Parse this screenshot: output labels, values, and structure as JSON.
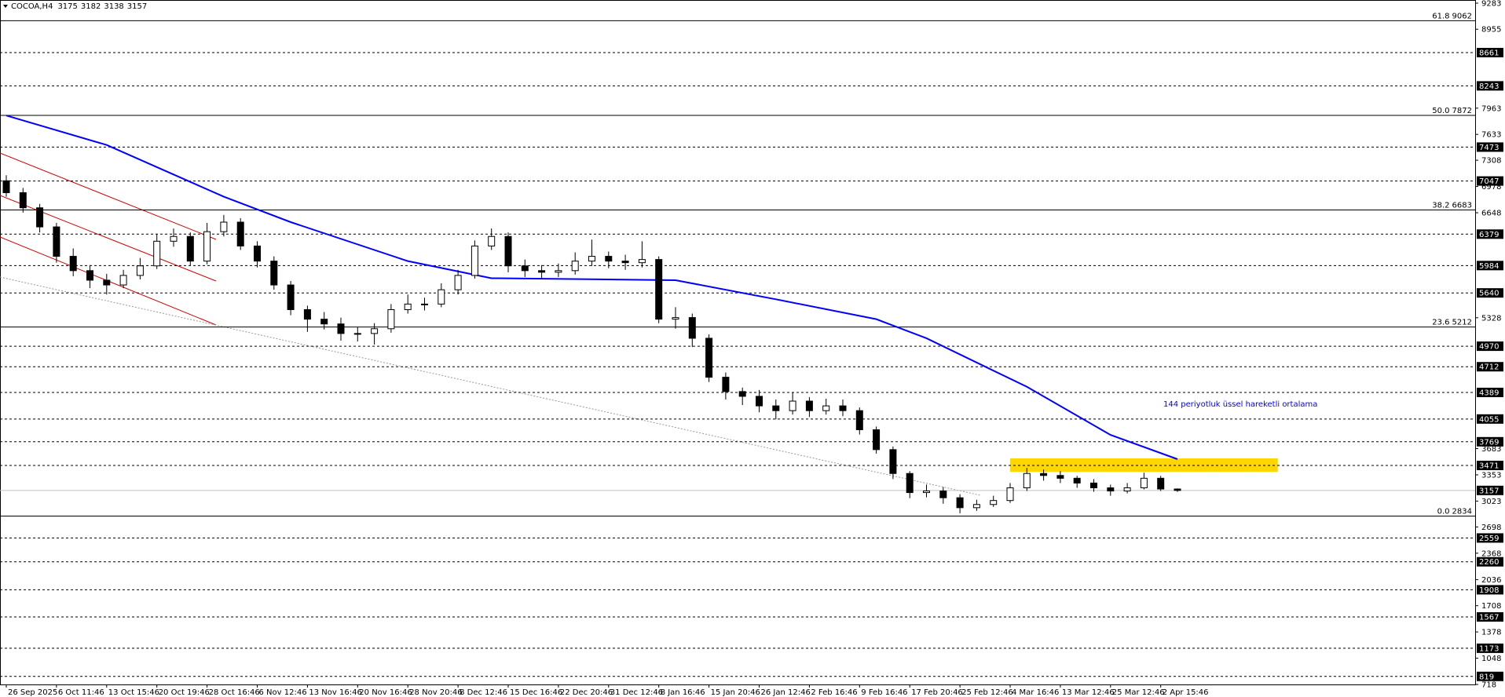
{
  "chart_data": {
    "type": "candlestick",
    "title": "COCOA,H4",
    "header_values": [
      3175,
      3182,
      3138,
      3157
    ],
    "categories": [
      "26 Sep 2025",
      null,
      null,
      "6 Oct 11:46",
      null,
      null,
      "13 Oct 15:46",
      null,
      null,
      "20 Oct 19:46",
      null,
      null,
      "28 Oct 16:46",
      null,
      null,
      "6 Nov 12:46",
      null,
      null,
      "13 Nov 16:46",
      null,
      null,
      "20 Nov 16:46",
      null,
      null,
      "28 Nov 20:46",
      null,
      null,
      "8 Dec 12:46",
      null,
      null,
      "15 Dec 16:46",
      null,
      null,
      "22 Dec 20:46",
      null,
      null,
      "31 Dec 12:46",
      null,
      null,
      "8 Jan 16:46",
      null,
      null,
      "15 Jan 20:46",
      null,
      null,
      "26 Jan 12:46",
      null,
      null,
      "2 Feb 16:46",
      null,
      null,
      "9 Feb 16:46",
      null,
      null,
      "17 Feb 20:46",
      null,
      null,
      "25 Feb 12:46",
      null,
      null,
      "4 Mar 16:46",
      null,
      null,
      "13 Mar 12:46",
      null,
      null,
      "25 Mar 12:46",
      null,
      null,
      "2 Apr 15:46",
      null
    ],
    "open": [
      7050,
      6900,
      6710,
      6470,
      6100,
      5920,
      5800,
      5740,
      5860,
      5980,
      6290,
      6350,
      6040,
      6410,
      6530,
      6230,
      6040,
      5740,
      5430,
      5310,
      5250,
      5130,
      5130,
      5190,
      5430,
      5500,
      5500,
      5680,
      5860,
      6230,
      6350,
      5980,
      5920,
      5900,
      5920,
      6040,
      6100,
      6040,
      6020,
      6060,
      5310,
      5330,
      5070,
      4580,
      4400,
      4340,
      4220,
      4160,
      4280,
      4160,
      4220,
      4160,
      3920,
      3670,
      3370,
      3130,
      3150,
      3065,
      2940,
      2980,
      3030,
      3190,
      3370,
      3345,
      3310,
      3250,
      3190,
      3150,
      3190,
      3310,
      3175
    ],
    "high": [
      7120,
      6960,
      6760,
      6520,
      6200,
      5990,
      5880,
      5930,
      6080,
      6380,
      6450,
      6400,
      6520,
      6620,
      6580,
      6290,
      6100,
      5790,
      5480,
      5400,
      5330,
      5210,
      5260,
      5500,
      5620,
      5580,
      5760,
      5930,
      6300,
      6450,
      6400,
      6060,
      5990,
      6010,
      6150,
      6310,
      6160,
      6120,
      6290,
      6100,
      5460,
      5380,
      5120,
      4640,
      4450,
      4420,
      4300,
      4390,
      4330,
      4310,
      4300,
      4200,
      3960,
      3710,
      3400,
      3230,
      3200,
      3110,
      3040,
      3090,
      3250,
      3440,
      3420,
      3400,
      3340,
      3300,
      3230,
      3250,
      3380,
      3340,
      3182
    ],
    "low": [
      6850,
      6650,
      6400,
      6020,
      5850,
      5700,
      5620,
      5700,
      5810,
      5940,
      6220,
      5980,
      6000,
      6350,
      6180,
      5960,
      5680,
      5360,
      5150,
      5180,
      5040,
      5030,
      4990,
      5140,
      5380,
      5420,
      5460,
      5620,
      5820,
      6180,
      5900,
      5840,
      5820,
      5840,
      5870,
      5980,
      5950,
      5930,
      5960,
      5260,
      5190,
      4960,
      4520,
      4300,
      4230,
      4140,
      4050,
      4110,
      4080,
      4110,
      4090,
      3860,
      3620,
      3300,
      3060,
      3070,
      2990,
      2870,
      2900,
      2950,
      3000,
      3150,
      3280,
      3250,
      3190,
      3140,
      3090,
      3120,
      3170,
      3150,
      3138
    ],
    "close": [
      6900,
      6710,
      6470,
      6100,
      5920,
      5800,
      5740,
      5860,
      5980,
      6290,
      6350,
      6040,
      6410,
      6530,
      6230,
      6040,
      5740,
      5430,
      5310,
      5250,
      5130,
      5130,
      5190,
      5430,
      5500,
      5500,
      5680,
      5860,
      6230,
      6350,
      5980,
      5920,
      5900,
      5920,
      6040,
      6100,
      6040,
      6020,
      6060,
      5310,
      5330,
      5070,
      4580,
      4400,
      4340,
      4220,
      4160,
      4280,
      4160,
      4220,
      4160,
      3920,
      3670,
      3370,
      3130,
      3150,
      3065,
      2940,
      2980,
      3030,
      3190,
      3370,
      3345,
      3310,
      3250,
      3190,
      3150,
      3190,
      3310,
      3175,
      3157
    ],
    "ylim": [
      718,
      9283
    ],
    "yticks": [
      9283,
      8955,
      7963,
      7633,
      7308,
      6978,
      6648,
      5328,
      3683,
      3353,
      3023,
      2698,
      2368,
      2036,
      1708,
      1378,
      1048,
      718
    ],
    "levels": [
      8661,
      8243,
      7473,
      7047,
      6379,
      5984,
      5640,
      4970,
      4712,
      4389,
      4055,
      3769,
      3471,
      2559,
      2260,
      1908,
      1567,
      1173,
      819
    ],
    "current_price": 3157,
    "fib": [
      {
        "label": "61.8",
        "value": 9062
      },
      {
        "label": "50.0",
        "value": 7872
      },
      {
        "label": "38.2",
        "value": 6683
      },
      {
        "label": "23.6",
        "value": 5212
      },
      {
        "label": "0.0",
        "value": 2834
      }
    ],
    "ema": {
      "x": [
        0,
        6,
        13,
        17,
        24,
        29,
        40,
        46,
        52,
        55,
        61,
        66,
        70
      ],
      "values": [
        7870,
        7500,
        6850,
        6530,
        6040,
        5825,
        5800,
        5560,
        5310,
        5070,
        4460,
        3855,
        3550
      ],
      "color": "#0000ff"
    },
    "annotation": "144 periyotluk üssel hareketli ortalama",
    "zone": {
      "low": 3390,
      "high": 3560,
      "start": 60,
      "end": 76,
      "color": "#ffd700"
    }
  }
}
